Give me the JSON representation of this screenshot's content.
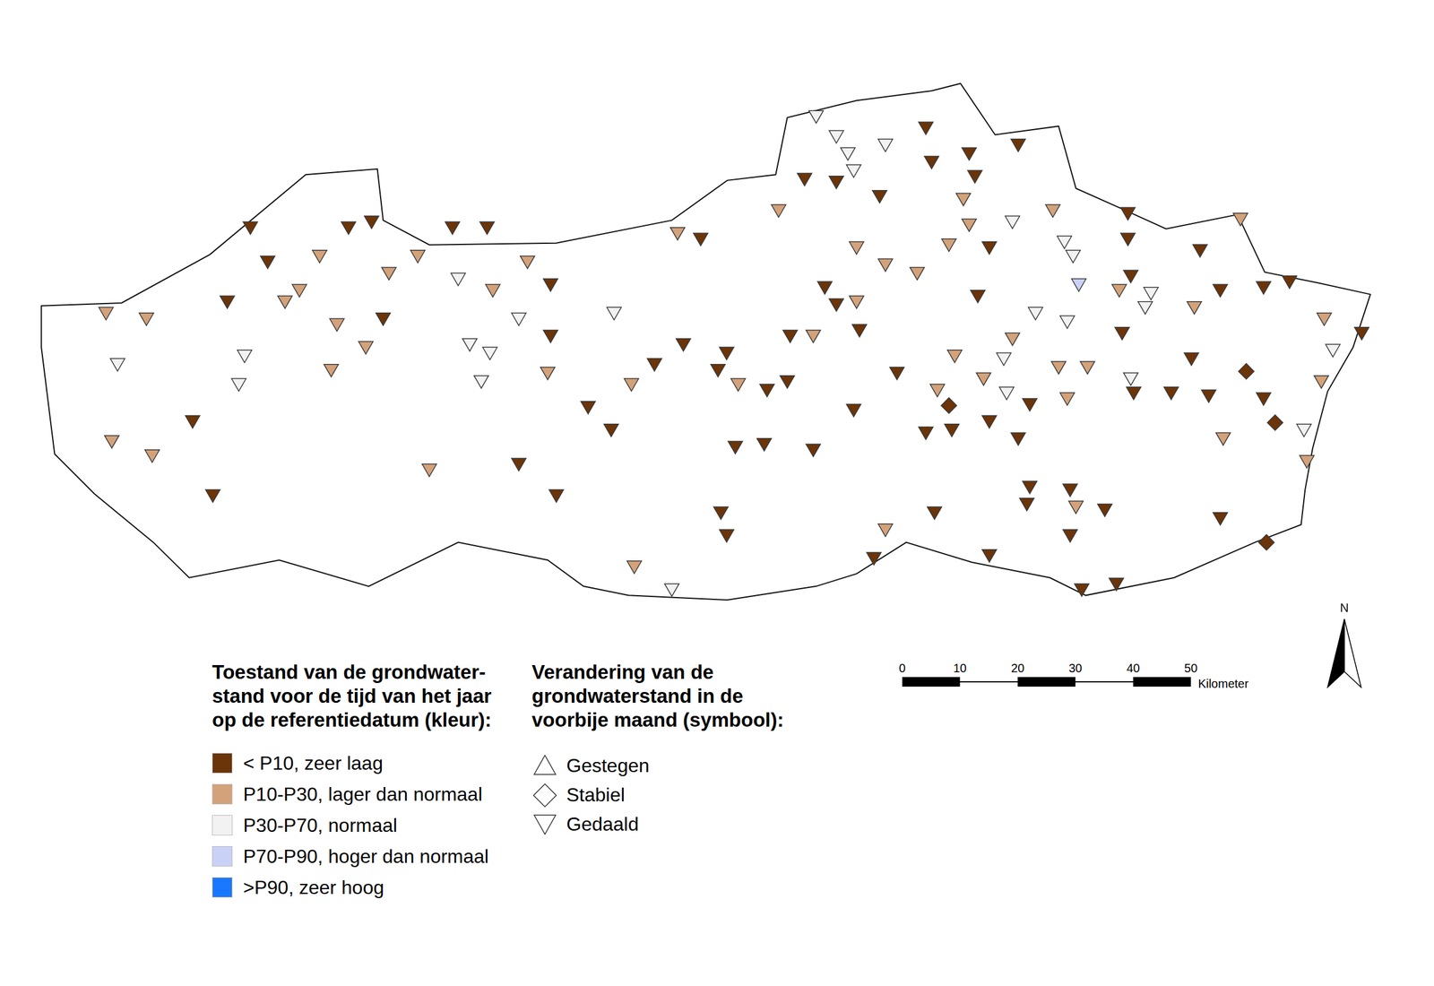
{
  "chart_data": {
    "type": "scatter",
    "xlim": [
      0,
      240
    ],
    "ylim": [
      0,
      100
    ],
    "tick_labels": false,
    "grid": false,
    "color_legend": {
      "title": [
        "Toestand van de grondwater-",
        "stand voor de tijd van het jaar",
        "op de referentiedatum (kleur):"
      ],
      "items": [
        {
          "label": "< P10, zeer laag",
          "color": "#6b3409"
        },
        {
          "label": "P10-P30, lager dan normaal",
          "color": "#d3a27a"
        },
        {
          "label": "P30-P70, normaal",
          "color": "#f2f2f2"
        },
        {
          "label": "P70-P90, hoger dan normaal",
          "color": "#c9d1f6"
        },
        {
          "label": ">P90, zeer hoog",
          "color": "#1a78ff"
        }
      ]
    },
    "symbol_legend": {
      "title": [
        "Verandering van de",
        "grondwaterstand in de",
        "voorbije maand (symbool):"
      ],
      "items": [
        {
          "label": "Gestegen",
          "marker": "triangle-up"
        },
        {
          "label": "Stabiel",
          "marker": "diamond"
        },
        {
          "label": "Gedaald",
          "marker": "triangle-down"
        }
      ]
    },
    "scale_bar": {
      "ticks": [
        0,
        10,
        20,
        30,
        40,
        50
      ],
      "unit": "Kilometer"
    },
    "north_label": "N",
    "points": {
      "x": [
        37,
        40,
        49,
        54,
        58,
        66,
        72,
        78,
        85,
        61,
        45.5,
        43,
        33,
        12,
        19,
        52,
        60,
        57,
        36,
        14,
        35,
        51,
        27,
        13,
        20,
        30.5,
        73,
        79,
        83.5,
        89,
        75,
        78.5,
        77,
        88.5,
        89,
        100,
        68,
        83.5,
        90,
        95.5,
        99.5,
        111,
        115,
        103,
        107,
        112,
        119.5,
        118,
        121.5,
        126.5,
        130,
        121,
        126,
        134.5,
        118.5,
        119.5,
        103.5,
        110,
        147,
        145,
        135,
        138.5,
        140.5,
        141.5,
        147,
        154,
        155,
        161.5,
        162.5,
        170,
        133,
        138.5,
        146,
        128.5,
        160.5,
        161.5,
        158,
        165,
        169,
        176,
        142,
        147,
        152.5,
        163,
        178,
        179.5,
        180.5,
        189,
        189,
        189.5,
        187.5,
        193,
        192,
        200.5,
        201.5,
        208.5,
        205,
        212.5,
        217,
        223,
        229.5,
        224.5,
        136.5,
        138.5,
        142,
        142.5,
        130.5,
        134.5,
        173,
        178.5,
        188,
        169,
        159,
        167.5,
        149,
        156,
        164,
        168,
        172,
        177,
        182,
        178.5,
        189.5,
        190,
        196.5,
        200,
        203,
        209.5,
        212.5,
        214.5,
        219.5,
        222.5,
        220,
        205.5,
        158,
        158.5,
        154,
        165,
        170,
        141.5,
        172,
        171.5,
        179,
        180,
        179,
        185,
        155.5,
        165,
        181,
        187,
        205,
        213
      ],
      "y": [
        71,
        65,
        66,
        71,
        72,
        66,
        71,
        71,
        65,
        63,
        60,
        58,
        58,
        56,
        55,
        54,
        55,
        50,
        48.5,
        47,
        43.5,
        46,
        37,
        33.5,
        31,
        24,
        62,
        60,
        55,
        61,
        50.5,
        49,
        44,
        45.5,
        52,
        56,
        28.5,
        29.5,
        24,
        39.5,
        35.5,
        70,
        69,
        43.5,
        47,
        50.5,
        49,
        46,
        43.5,
        42.5,
        44,
        32.5,
        33,
        32,
        21,
        17,
        11.5,
        7.5,
        18,
        13,
        90.5,
        87,
        84,
        81,
        85.5,
        88.5,
        82.5,
        84,
        80,
        85.5,
        79.5,
        79,
        76.5,
        74,
        76,
        71.5,
        68,
        67.5,
        72,
        74,
        67.5,
        64.5,
        63,
        59,
        68.5,
        66,
        61,
        73.5,
        69,
        62.5,
        60,
        59.5,
        57,
        57,
        67,
        72.5,
        60,
        60.5,
        61.5,
        55,
        52.5,
        49.5,
        60.5,
        57.5,
        58,
        53,
        52,
        52,
        56,
        54.5,
        52.5,
        51.5,
        48.5,
        48,
        45.5,
        42.5,
        44.5,
        42,
        40,
        46.5,
        46.5,
        41,
        44.5,
        42,
        42,
        48,
        41.5,
        45.5,
        41,
        36.5,
        35.5,
        44,
        30,
        34,
        39.5,
        35.5,
        35,
        37,
        34,
        39,
        25.5,
        22.5,
        25,
        22,
        17,
        21.5,
        21,
        13.5,
        7.5,
        8.5,
        20,
        15.5
      ],
      "status": [
        0,
        0,
        1,
        0,
        0,
        1,
        0,
        0,
        1,
        1,
        1,
        1,
        0,
        1,
        1,
        1,
        0,
        1,
        2,
        2,
        2,
        1,
        0,
        1,
        1,
        0,
        2,
        1,
        2,
        0,
        2,
        2,
        2,
        1,
        0,
        2,
        1,
        0,
        0,
        0,
        0,
        1,
        0,
        1,
        0,
        0,
        0,
        0,
        1,
        0,
        0,
        0,
        0,
        0,
        0,
        0,
        1,
        2,
        1,
        0,
        2,
        2,
        2,
        2,
        2,
        0,
        0,
        0,
        0,
        0,
        0,
        0,
        0,
        1,
        1,
        1,
        1,
        0,
        2,
        1,
        1,
        1,
        1,
        0,
        2,
        2,
        3,
        0,
        0,
        0,
        1,
        2,
        2,
        1,
        0,
        1,
        0,
        0,
        0,
        1,
        0,
        2,
        0,
        0,
        1,
        0,
        0,
        1,
        2,
        2,
        0,
        1,
        1,
        2,
        0,
        1,
        1,
        2,
        0,
        1,
        1,
        1,
        2,
        0,
        0,
        0,
        0,
        0,
        0,
        0,
        2,
        1,
        1,
        1,
        0,
        0,
        0,
        0,
        0,
        0,
        0,
        0,
        0,
        1,
        0,
        0,
        0,
        0,
        0,
        0,
        0,
        0
      ],
      "change": [
        2,
        2,
        2,
        2,
        2,
        2,
        2,
        2,
        2,
        2,
        2,
        2,
        2,
        2,
        2,
        2,
        2,
        2,
        2,
        2,
        2,
        2,
        2,
        2,
        2,
        2,
        2,
        2,
        2,
        2,
        2,
        2,
        2,
        2,
        2,
        2,
        2,
        2,
        2,
        2,
        2,
        2,
        2,
        2,
        2,
        2,
        2,
        2,
        2,
        2,
        2,
        2,
        2,
        2,
        2,
        2,
        2,
        2,
        2,
        2,
        2,
        2,
        2,
        2,
        2,
        2,
        2,
        2,
        2,
        2,
        2,
        2,
        2,
        2,
        2,
        2,
        2,
        2,
        2,
        2,
        2,
        2,
        2,
        2,
        2,
        2,
        2,
        2,
        2,
        2,
        2,
        2,
        2,
        2,
        2,
        2,
        2,
        2,
        2,
        2,
        2,
        2,
        2,
        2,
        2,
        2,
        2,
        2,
        2,
        2,
        2,
        2,
        2,
        2,
        2,
        2,
        2,
        2,
        2,
        2,
        2,
        2,
        2,
        2,
        2,
        2,
        2,
        1,
        2,
        1,
        2,
        2,
        2,
        2,
        1,
        2,
        2,
        2,
        2,
        2,
        2,
        2,
        2,
        2,
        2,
        2,
        2,
        2,
        2,
        2,
        2,
        1
      ]
    }
  }
}
